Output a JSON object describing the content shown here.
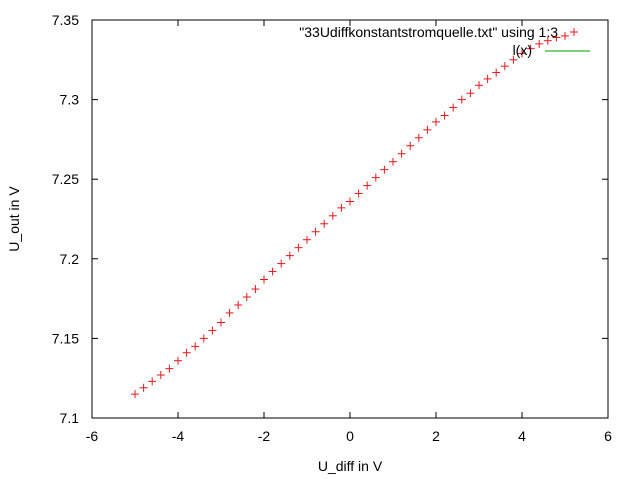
{
  "chart_data": {
    "type": "scatter",
    "xlabel": "U_diff in V",
    "ylabel": "U_out in V",
    "xlim": [
      -6,
      6
    ],
    "ylim": [
      7.1,
      7.35
    ],
    "xticks": [
      "-6",
      "-4",
      "-2",
      "0",
      "2",
      "4",
      "6"
    ],
    "yticks": [
      "7.1",
      "7.15",
      "7.2",
      "7.25",
      "7.3",
      "7.35"
    ],
    "grid": false,
    "legend_position": "top-right",
    "series": [
      {
        "name": "\"33Udiffkonstantstromquelle.txt\" using 1:3",
        "marker": "plus",
        "color": "#e41a1c",
        "x": [
          -5.0,
          -4.8,
          -4.6,
          -4.4,
          -4.2,
          -4.0,
          -3.8,
          -3.6,
          -3.4,
          -3.2,
          -3.0,
          -2.8,
          -2.6,
          -2.4,
          -2.2,
          -2.0,
          -1.8,
          -1.6,
          -1.4,
          -1.2,
          -1.0,
          -0.8,
          -0.6,
          -0.4,
          -0.2,
          0.0,
          0.2,
          0.4,
          0.6,
          0.8,
          1.0,
          1.2,
          1.4,
          1.6,
          1.8,
          2.0,
          2.2,
          2.4,
          2.6,
          2.8,
          3.0,
          3.2,
          3.4,
          3.6,
          3.8,
          4.0,
          4.2,
          4.4,
          4.6,
          4.8,
          5.0
        ],
        "y": [
          7.115,
          7.119,
          7.123,
          7.127,
          7.131,
          7.136,
          7.141,
          7.145,
          7.15,
          7.155,
          7.16,
          7.166,
          7.171,
          7.176,
          7.181,
          7.187,
          7.192,
          7.197,
          7.202,
          7.207,
          7.212,
          7.217,
          7.222,
          7.227,
          7.232,
          7.236,
          7.241,
          7.246,
          7.251,
          7.256,
          7.261,
          7.266,
          7.271,
          7.276,
          7.281,
          7.286,
          7.29,
          7.295,
          7.3,
          7.304,
          7.309,
          7.313,
          7.317,
          7.321,
          7.325,
          7.329,
          7.332,
          7.335,
          7.337,
          7.339,
          7.34
        ]
      },
      {
        "name": "l(x)",
        "marker": "line",
        "color": "#00a000",
        "x": [],
        "y": []
      }
    ]
  }
}
